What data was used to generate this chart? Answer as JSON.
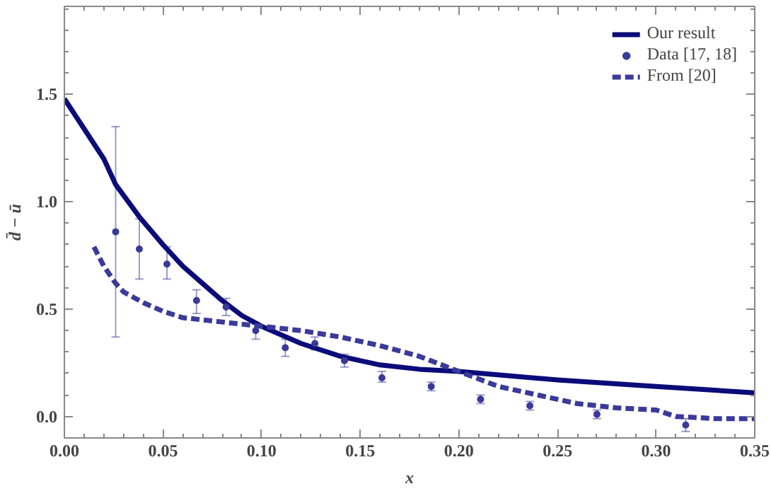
{
  "chart_data": {
    "type": "line",
    "xlabel": "x",
    "ylabel": "d̄ − ū",
    "xlim": [
      0,
      0.35
    ],
    "ylim": [
      -0.1,
      1.91
    ],
    "xticks": [
      {
        "value": 0,
        "label": "0.00"
      },
      {
        "value": 0.05,
        "label": "0.05"
      },
      {
        "value": 0.1,
        "label": "0.10"
      },
      {
        "value": 0.15,
        "label": "0.15"
      },
      {
        "value": 0.2,
        "label": "0.20"
      },
      {
        "value": 0.25,
        "label": "0.25"
      },
      {
        "value": 0.3,
        "label": "0.30"
      },
      {
        "value": 0.35,
        "label": "0.35"
      }
    ],
    "yticks": [
      {
        "value": 0,
        "label": "0.0"
      },
      {
        "value": 0.5,
        "label": "0.5"
      },
      {
        "value": 1,
        "label": "1.0"
      },
      {
        "value": 1.5,
        "label": "1.5"
      }
    ],
    "grid": false,
    "legend": "top right",
    "series": [
      {
        "name": "Our result",
        "color": "#0b0b7a",
        "line_style": "solid",
        "x": [
          0,
          0.02,
          0.026,
          0.038,
          0.05,
          0.06,
          0.07,
          0.08,
          0.09,
          0.1,
          0.12,
          0.14,
          0.16,
          0.18,
          0.2,
          0.25,
          0.3,
          0.35
        ],
        "values": [
          1.48,
          1.2,
          1.08,
          0.93,
          0.8,
          0.7,
          0.62,
          0.54,
          0.47,
          0.42,
          0.34,
          0.28,
          0.24,
          0.22,
          0.21,
          0.17,
          0.14,
          0.11
        ]
      },
      {
        "name": "Data [17, 18]",
        "type": "scatter",
        "color": "#3a3a9a",
        "marker": "circle",
        "x": [
          0.026,
          0.038,
          0.052,
          0.067,
          0.082,
          0.097,
          0.112,
          0.127,
          0.142,
          0.161,
          0.186,
          0.211,
          0.236,
          0.27,
          0.315
        ],
        "values": [
          0.86,
          0.78,
          0.71,
          0.54,
          0.51,
          0.4,
          0.32,
          0.34,
          0.26,
          0.18,
          0.14,
          0.08,
          0.05,
          0.01,
          -0.04
        ],
        "errors": [
          [
            0.37,
            1.35
          ],
          [
            0.64,
            0.92
          ],
          [
            0.64,
            0.79
          ],
          [
            0.48,
            0.59
          ],
          [
            0.47,
            0.55
          ],
          [
            0.36,
            0.43
          ],
          [
            0.28,
            0.36
          ],
          [
            0.31,
            0.37
          ],
          [
            0.23,
            0.29
          ],
          [
            0.16,
            0.21
          ],
          [
            0.12,
            0.16
          ],
          [
            0.06,
            0.1
          ],
          [
            0.03,
            0.07
          ],
          [
            -0.01,
            0.03
          ],
          [
            -0.07,
            -0.01
          ]
        ]
      },
      {
        "name": "From [20]",
        "color": "#3a3a9a",
        "line_style": "dashed",
        "x": [
          0.015,
          0.02,
          0.026,
          0.03,
          0.04,
          0.05,
          0.06,
          0.07,
          0.08,
          0.1,
          0.12,
          0.14,
          0.16,
          0.18,
          0.2,
          0.22,
          0.24,
          0.26,
          0.28,
          0.3,
          0.31,
          0.33,
          0.35
        ],
        "values": [
          0.79,
          0.7,
          0.62,
          0.58,
          0.53,
          0.49,
          0.46,
          0.45,
          0.44,
          0.42,
          0.4,
          0.37,
          0.33,
          0.28,
          0.21,
          0.14,
          0.1,
          0.06,
          0.04,
          0.03,
          0.0,
          -0.01,
          -0.01
        ]
      }
    ]
  }
}
